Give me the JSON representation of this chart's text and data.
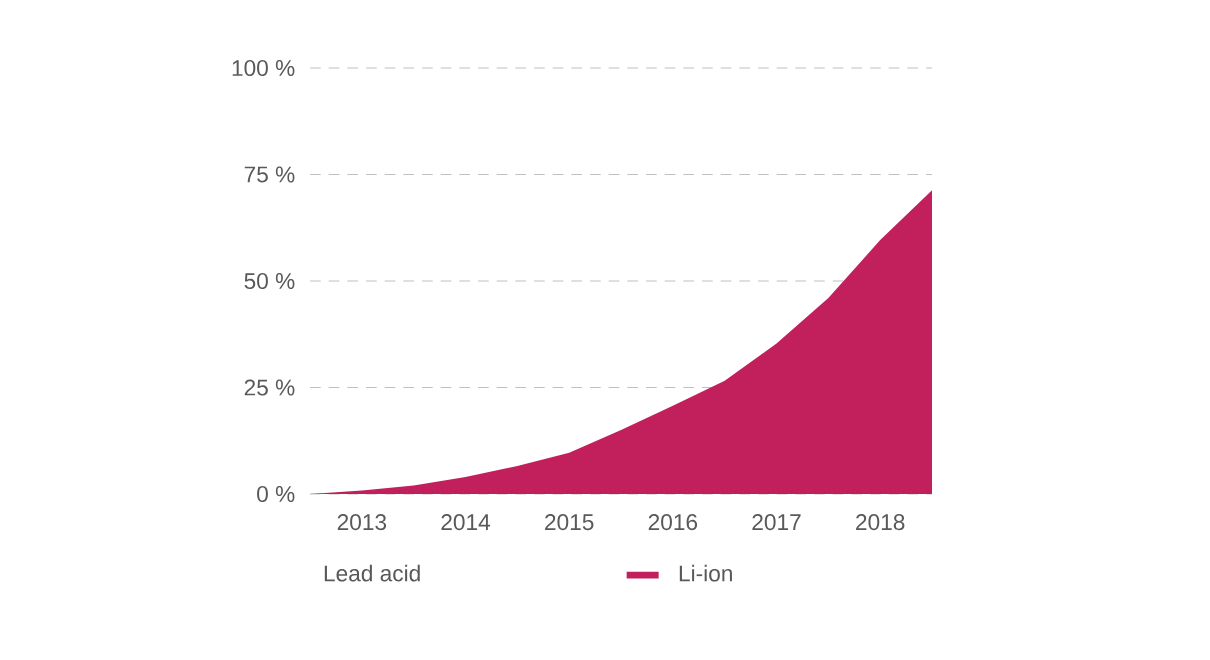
{
  "chart_data": {
    "type": "area",
    "x": [
      2012.5,
      2013,
      2013.5,
      2014,
      2014.5,
      2015,
      2015.5,
      2016,
      2016.5,
      2017,
      2017.5,
      2018,
      2018.5
    ],
    "series": [
      {
        "name": "Li-ion",
        "color": "#c2205c",
        "values": [
          0,
          0.8,
          2,
          4,
          6.6,
          9.7,
          15,
          20.7,
          26.6,
          35.3,
          46,
          59.6,
          71.3
        ]
      }
    ],
    "annotations": [
      "Lead acid"
    ],
    "xlim": [
      2012.5,
      2018.5
    ],
    "xticks": [
      2013,
      2014,
      2015,
      2016,
      2017,
      2018
    ],
    "ylim": [
      0,
      100
    ],
    "yticks": [
      {
        "value": 0,
        "label": "0 %"
      },
      {
        "value": 25,
        "label": "25 %"
      },
      {
        "value": 50,
        "label": "50 %"
      },
      {
        "value": 75,
        "label": "75 %"
      },
      {
        "value": 100,
        "label": "100 %"
      }
    ],
    "grid": "y",
    "legend": "bottom",
    "line_style": "dashed"
  }
}
